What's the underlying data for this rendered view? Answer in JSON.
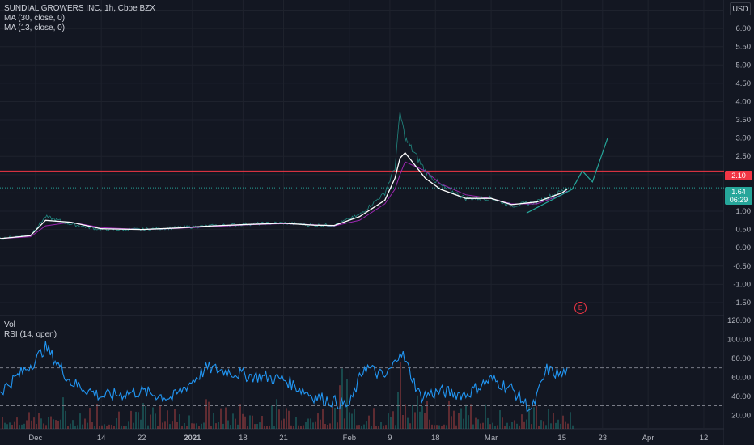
{
  "symbol_line": "SUNDIAL GROWERS INC, 1h, Cboe BZX",
  "ma30_label": "MA (30, close, 0)",
  "ma13_label": "MA (13, close, 0)",
  "vol_label": "Vol",
  "rsi_label": "RSI (14, open)",
  "currency": "USD",
  "earnings_marker": "E",
  "price_tags": {
    "resistance": "2.10",
    "last_price": "1.64",
    "countdown": "06:29"
  },
  "colors": {
    "background": "#131722",
    "price_line": "#d1d4dc",
    "ma30": "#9c27b0",
    "ma13": "#ffffff",
    "rsi": "#2196f3",
    "resistance": "#f23645",
    "trend": "#26a69a",
    "vol_up": "#26a69a",
    "vol_down": "#ef5350"
  },
  "chart_data": [
    {
      "type": "line",
      "title": "SUNDIAL GROWERS INC, 1h, Cboe BZX",
      "x_tick_labels": [
        "Dec",
        "14",
        "22",
        "2021",
        "18",
        "21",
        "Feb",
        "9",
        "18",
        "Mar",
        "15",
        "23",
        "Apr",
        "12"
      ],
      "y_tick_labels": [
        "6.50",
        "6.00",
        "5.50",
        "5.00",
        "4.50",
        "4.00",
        "3.50",
        "3.00",
        "2.50",
        "2.00",
        "1.50",
        "1.00",
        "0.50",
        "0.00",
        "-0.50",
        "-1.00",
        "-1.50"
      ],
      "ylim": [
        -1.7,
        6.6
      ],
      "x": [
        "Nov 24",
        "Nov 30",
        "Dec 3",
        "Dec 8",
        "Dec 14",
        "Dec 22",
        "Dec 29",
        "Jan 5",
        "Jan 12",
        "Jan 19",
        "Jan 25",
        "Jan 29",
        "Feb 3",
        "Feb 8",
        "Feb 10",
        "Feb 11",
        "Feb 12",
        "Feb 16",
        "Feb 19",
        "Feb 24",
        "Mar 1",
        "Mar 5",
        "Mar 10",
        "Mar 15",
        "Mar 16"
      ],
      "series": [
        {
          "name": "Price",
          "values": [
            0.25,
            0.35,
            0.85,
            0.65,
            0.5,
            0.5,
            0.55,
            0.6,
            0.65,
            0.68,
            0.62,
            0.62,
            0.9,
            1.5,
            2.2,
            3.7,
            3.0,
            2.1,
            1.7,
            1.35,
            1.35,
            1.15,
            1.25,
            1.55,
            1.64
          ]
        },
        {
          "name": "MA (30, close, 0)",
          "values": [
            0.25,
            0.3,
            0.6,
            0.7,
            0.55,
            0.5,
            0.53,
            0.58,
            0.63,
            0.66,
            0.63,
            0.6,
            0.75,
            1.2,
            1.6,
            2.0,
            2.35,
            2.1,
            1.75,
            1.45,
            1.35,
            1.2,
            1.2,
            1.45,
            1.55
          ]
        },
        {
          "name": "MA (13, close, 0)",
          "values": [
            0.25,
            0.33,
            0.75,
            0.7,
            0.52,
            0.5,
            0.54,
            0.6,
            0.64,
            0.67,
            0.62,
            0.61,
            0.85,
            1.3,
            1.9,
            2.45,
            2.6,
            1.9,
            1.6,
            1.35,
            1.35,
            1.18,
            1.25,
            1.5,
            1.6
          ]
        }
      ],
      "annotations": [
        {
          "type": "horizontal_line",
          "value": 2.1,
          "label": "2.10"
        },
        {
          "type": "horizontal_line_dotted",
          "value": 1.64,
          "label": "1.64"
        },
        {
          "type": "trend_projection",
          "points": [
            [
              "Mar 8",
              0.95
            ],
            [
              "Mar 17",
              1.6
            ],
            [
              "Mar 19",
              2.1
            ],
            [
              "Mar 21",
              1.8
            ],
            [
              "Mar 24",
              3.0
            ]
          ]
        }
      ]
    },
    {
      "type": "line",
      "title": "RSI (14, open)",
      "y_tick_labels": [
        "120.00",
        "100.00",
        "80.00",
        "60.00",
        "40.00",
        "20.00"
      ],
      "ylim": [
        10,
        120
      ],
      "reference_lines": [
        70,
        30
      ],
      "x": [
        "Nov 24",
        "Dec 1",
        "Dec 3",
        "Dec 8",
        "Dec 14",
        "Dec 22",
        "Dec 28",
        "Jan 4",
        "Jan 12",
        "Jan 19",
        "Jan 25",
        "Feb 1",
        "Feb 4",
        "Feb 8",
        "Feb 10",
        "Feb 11",
        "Feb 15",
        "Feb 19",
        "Feb 24",
        "Mar 1",
        "Mar 5",
        "Mar 9",
        "Mar 12",
        "Mar 15",
        "Mar 16"
      ],
      "series": [
        {
          "name": "RSI (14, open)",
          "values": [
            45,
            78,
            92,
            55,
            40,
            45,
            38,
            70,
            62,
            58,
            40,
            30,
            72,
            60,
            75,
            90,
            40,
            45,
            42,
            58,
            48,
            25,
            68,
            62,
            70
          ]
        }
      ]
    }
  ]
}
